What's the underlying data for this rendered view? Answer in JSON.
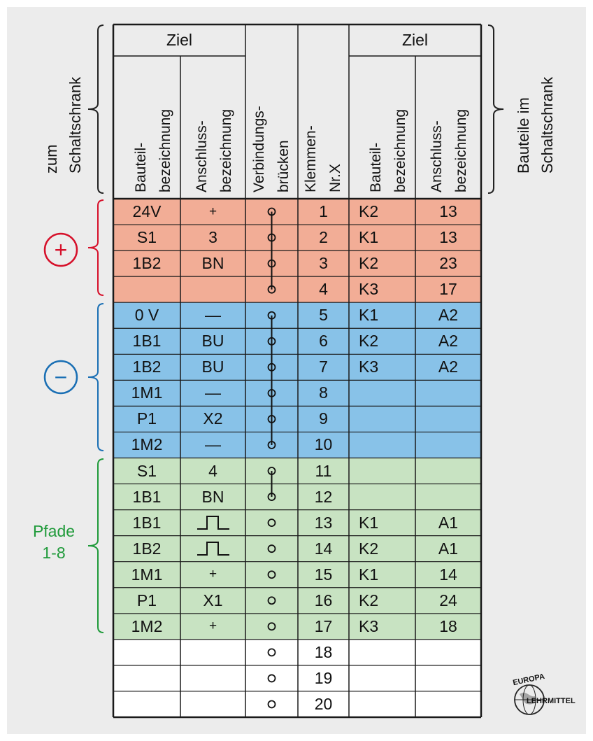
{
  "header": {
    "ziel_left": "Ziel",
    "ziel_right": "Ziel",
    "col_bauteil": [
      "Bauteil-",
      "bezeichnung"
    ],
    "col_anschluss": [
      "Anschluss-",
      "bezeichnung"
    ],
    "col_bruecken": [
      "Verbindungs-",
      "brücken"
    ],
    "col_klemmen": [
      "Klemmen-",
      "Nr.X"
    ],
    "col_bauteil_r": [
      "Bauteil-",
      "bezeichnung"
    ],
    "col_anschluss_r": [
      "Anschluss-",
      "bezeichnung"
    ]
  },
  "side_labels": {
    "left_top": [
      "zum",
      "Schaltschrank"
    ],
    "right_top": [
      "Bauteile im",
      "Schaltschrank"
    ],
    "plus_symbol": "+",
    "minus_symbol": "−",
    "pfade": [
      "Pfade",
      "1-8"
    ]
  },
  "colors": {
    "plus_row": "#f2ad96",
    "minus_row": "#88c2e8",
    "path_row": "#c8e3c2",
    "empty_row": "#ffffff",
    "plus_accent": "#d6102a",
    "minus_accent": "#1a6fb4",
    "path_accent": "#1f9a3a"
  },
  "rows": [
    {
      "part": "24V",
      "conn": "+",
      "terminal": "1",
      "part_r": "K2",
      "conn_r": "13",
      "group": "plus"
    },
    {
      "part": "S1",
      "conn": "3",
      "terminal": "2",
      "part_r": "K1",
      "conn_r": "13",
      "group": "plus"
    },
    {
      "part": "1B2",
      "conn": "BN",
      "terminal": "3",
      "part_r": "K2",
      "conn_r": "23",
      "group": "plus"
    },
    {
      "part": "",
      "conn": "",
      "terminal": "4",
      "part_r": "K3",
      "conn_r": "17",
      "group": "plus"
    },
    {
      "part": "0 V",
      "conn": "—",
      "terminal": "5",
      "part_r": "K1",
      "conn_r": "A2",
      "group": "minus"
    },
    {
      "part": "1B1",
      "conn": "BU",
      "terminal": "6",
      "part_r": "K2",
      "conn_r": "A2",
      "group": "minus"
    },
    {
      "part": "1B2",
      "conn": "BU",
      "terminal": "7",
      "part_r": "K3",
      "conn_r": "A2",
      "group": "minus"
    },
    {
      "part": "1M1",
      "conn": "—",
      "terminal": "8",
      "part_r": "",
      "conn_r": "",
      "group": "minus"
    },
    {
      "part": "P1",
      "conn": "X2",
      "terminal": "9",
      "part_r": "",
      "conn_r": "",
      "group": "minus"
    },
    {
      "part": "1M2",
      "conn": "—",
      "terminal": "10",
      "part_r": "",
      "conn_r": "",
      "group": "minus"
    },
    {
      "part": "S1",
      "conn": "4",
      "terminal": "11",
      "part_r": "",
      "conn_r": "",
      "group": "path"
    },
    {
      "part": "1B1",
      "conn": "BN",
      "terminal": "12",
      "part_r": "",
      "conn_r": "",
      "group": "path"
    },
    {
      "part": "1B1",
      "conn": "pulse-symbol",
      "terminal": "13",
      "part_r": "K1",
      "conn_r": "A1",
      "group": "path"
    },
    {
      "part": "1B2",
      "conn": "pulse-symbol",
      "terminal": "14",
      "part_r": "K2",
      "conn_r": "A1",
      "group": "path"
    },
    {
      "part": "1M1",
      "conn": "+",
      "terminal": "15",
      "part_r": "K1",
      "conn_r": "14",
      "group": "path"
    },
    {
      "part": "P1",
      "conn": "X1",
      "terminal": "16",
      "part_r": "K2",
      "conn_r": "24",
      "group": "path"
    },
    {
      "part": "1M2",
      "conn": "+",
      "terminal": "17",
      "part_r": "K3",
      "conn_r": "18",
      "group": "path"
    },
    {
      "part": "",
      "conn": "",
      "terminal": "18",
      "part_r": "",
      "conn_r": "",
      "group": "empty"
    },
    {
      "part": "",
      "conn": "",
      "terminal": "19",
      "part_r": "",
      "conn_r": "",
      "group": "empty"
    },
    {
      "part": "",
      "conn": "",
      "terminal": "20",
      "part_r": "",
      "conn_r": "",
      "group": "empty"
    }
  ],
  "bridges": [
    {
      "from": "1",
      "to": "4"
    },
    {
      "from": "5",
      "to": "10"
    },
    {
      "from": "11",
      "to": "12"
    }
  ],
  "logo": {
    "top": "EUROPA",
    "bottom": "LEHRMITTEL",
    "icon": "globe-logo-icon"
  }
}
